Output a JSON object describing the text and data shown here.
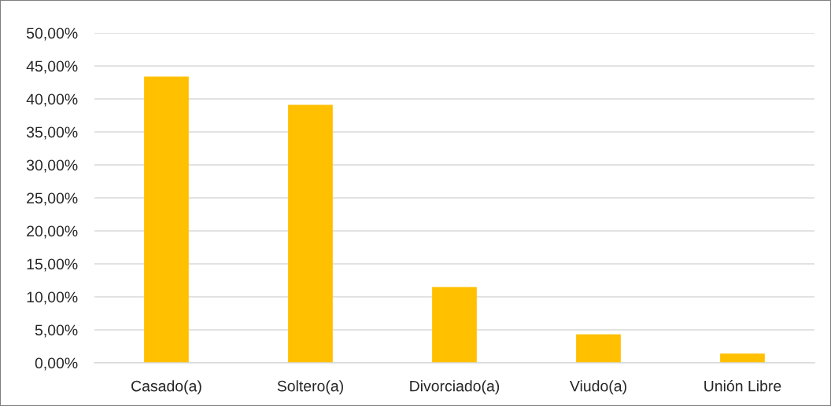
{
  "chart_data": {
    "type": "bar",
    "categories": [
      "Casado(a)",
      "Soltero(a)",
      "Divorciado(a)",
      "Viudo(a)",
      "Unión Libre"
    ],
    "values": [
      43.4,
      39.1,
      11.5,
      4.3,
      1.4
    ],
    "color": "#ffc000",
    "ylim": [
      0,
      50
    ],
    "yticks": [
      {
        "value": 0,
        "label": "0,00%"
      },
      {
        "value": 5,
        "label": "5,00%"
      },
      {
        "value": 10,
        "label": "10,00%"
      },
      {
        "value": 15,
        "label": "15,00%"
      },
      {
        "value": 20,
        "label": "20,00%"
      },
      {
        "value": 25,
        "label": "25,00%"
      },
      {
        "value": 30,
        "label": "30,00%"
      },
      {
        "value": 35,
        "label": "35,00%"
      },
      {
        "value": 40,
        "label": "40,00%"
      },
      {
        "value": 45,
        "label": "45,00%"
      },
      {
        "value": 50,
        "label": "50,00%"
      }
    ],
    "grid": "y"
  }
}
